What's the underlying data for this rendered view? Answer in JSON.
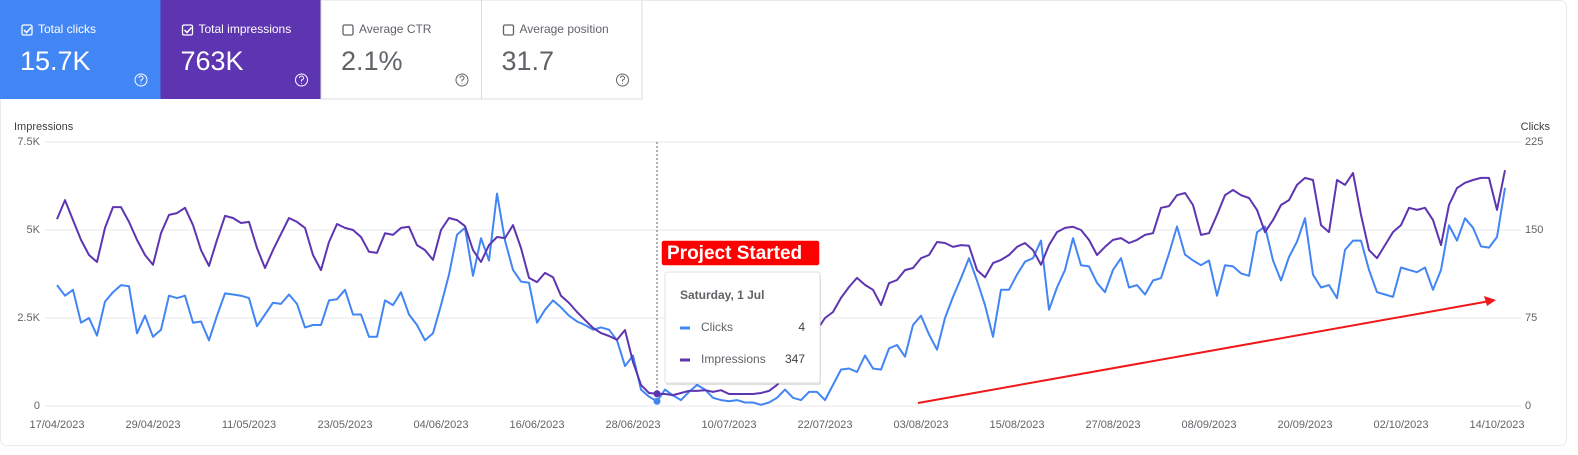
{
  "metrics": [
    {
      "label": "Total clicks",
      "value": "15.7K",
      "selected": true,
      "color": "#4285f4"
    },
    {
      "label": "Total impressions",
      "value": "763K",
      "selected": true,
      "color": "#5e35b1"
    },
    {
      "label": "Average CTR",
      "value": "2.1%",
      "selected": false,
      "color": "#ffffff"
    },
    {
      "label": "Average position",
      "value": "31.7",
      "selected": false,
      "color": "#ffffff"
    }
  ],
  "chart_data": {
    "type": "line",
    "y_label": "Impressions",
    "y2_label": "Clicks",
    "annotation": "Project Started",
    "tooltip": {
      "title": "Saturday, 1 Jul"
    },
    "categories": [
      "17/04/2023",
      null,
      null,
      null,
      null,
      null,
      null,
      null,
      null,
      null,
      null,
      null,
      "29/04/2023",
      null,
      null,
      null,
      null,
      null,
      null,
      null,
      null,
      null,
      null,
      null,
      "11/05/2023",
      null,
      null,
      null,
      null,
      null,
      null,
      null,
      null,
      null,
      null,
      null,
      "23/05/2023",
      null,
      null,
      null,
      null,
      null,
      null,
      null,
      null,
      null,
      null,
      null,
      "04/06/2023",
      null,
      null,
      null,
      null,
      null,
      null,
      null,
      null,
      null,
      null,
      null,
      "16/06/2023",
      null,
      null,
      null,
      null,
      null,
      null,
      null,
      null,
      null,
      null,
      null,
      "28/06/2023",
      null,
      null,
      null,
      null,
      null,
      null,
      null,
      null,
      null,
      null,
      null,
      "10/07/2023",
      null,
      null,
      null,
      null,
      null,
      null,
      null,
      null,
      null,
      null,
      null,
      "22/07/2023",
      null,
      null,
      null,
      null,
      null,
      null,
      null,
      null,
      null,
      null,
      null,
      "03/08/2023",
      null,
      null,
      null,
      null,
      null,
      null,
      null,
      null,
      null,
      null,
      null,
      "15/08/2023",
      null,
      null,
      null,
      null,
      null,
      null,
      null,
      null,
      null,
      null,
      null,
      "27/08/2023",
      null,
      null,
      null,
      null,
      null,
      null,
      null,
      null,
      null,
      null,
      null,
      "08/09/2023",
      null,
      null,
      null,
      null,
      null,
      null,
      null,
      null,
      null,
      null,
      null,
      "20/09/2023",
      null,
      null,
      null,
      null,
      null,
      null,
      null,
      null,
      null,
      null,
      null,
      "02/10/2023",
      null,
      null,
      null,
      null,
      null,
      null,
      null,
      null,
      null,
      null,
      null,
      "14/10/2023",
      null
    ],
    "series": [
      {
        "name": "Clicks",
        "color": "#4285f4",
        "axis": "y2",
        "values": [
          103,
          94,
          99,
          71,
          75,
          60,
          89,
          97,
          103,
          102,
          62,
          77,
          59,
          65,
          94,
          92,
          94,
          71,
          72,
          56,
          77,
          96,
          95,
          94,
          92,
          68,
          78,
          88,
          87,
          95,
          87,
          67,
          69,
          69,
          90,
          91,
          99,
          78,
          78,
          59,
          59,
          90,
          86,
          97,
          78,
          69,
          56,
          62,
          86,
          112,
          146,
          152,
          111,
          143,
          124,
          181,
          141,
          116,
          106,
          105,
          71,
          82,
          90,
          84,
          77,
          72,
          69,
          65,
          67,
          65,
          56,
          34,
          43,
          14,
          8,
          4,
          14,
          9,
          5,
          12,
          18,
          14,
          7,
          5,
          4,
          5,
          3,
          3,
          1,
          3,
          7,
          14,
          7,
          5,
          12,
          12,
          5,
          18,
          31,
          32,
          29,
          43,
          32,
          31,
          49,
          52,
          42,
          69,
          77,
          61,
          48,
          75,
          93,
          109,
          126,
          107,
          86,
          59,
          99,
          99,
          112,
          123,
          126,
          141,
          82,
          101,
          116,
          143,
          120,
          119,
          105,
          97,
          116,
          126,
          101,
          103,
          95,
          107,
          109,
          130,
          153,
          129,
          124,
          120,
          124,
          94,
          120,
          119,
          113,
          111,
          148,
          153,
          124,
          107,
          127,
          140,
          160,
          112,
          101,
          103,
          92,
          133,
          141,
          141,
          116,
          97,
          95,
          93,
          118,
          116,
          114,
          118,
          99,
          116,
          154,
          141,
          160,
          152,
          136,
          135,
          144,
          186
        ]
      },
      {
        "name": "Impressions",
        "color": "#5e35b1",
        "values": [
          5310,
          5850,
          5280,
          4720,
          4290,
          4090,
          5060,
          5650,
          5650,
          5230,
          4720,
          4290,
          4010,
          4910,
          5430,
          5480,
          5630,
          5140,
          4430,
          3980,
          4720,
          5400,
          5340,
          5200,
          5230,
          4490,
          3920,
          4430,
          4890,
          5340,
          5230,
          5060,
          4290,
          3860,
          4660,
          5170,
          5060,
          5000,
          4800,
          4380,
          4350,
          4910,
          4860,
          5060,
          5090,
          4570,
          4430,
          4150,
          5000,
          5340,
          5280,
          5110,
          4430,
          4090,
          4570,
          4800,
          4770,
          5140,
          4490,
          3640,
          3520,
          3780,
          3660,
          3130,
          2930,
          2670,
          2440,
          2220,
          2070,
          1990,
          1880,
          2160,
          1250,
          600,
          370,
          347,
          340,
          310,
          370,
          430,
          430,
          450,
          400,
          450,
          340,
          340,
          340,
          340,
          370,
          430,
          600,
          880,
          1250,
          1360,
          1650,
          2160,
          2500,
          2670,
          3070,
          3380,
          3640,
          3440,
          3300,
          2870,
          3490,
          3580,
          3860,
          3920,
          4200,
          4290,
          4660,
          4630,
          4520,
          4570,
          4550,
          3860,
          3660,
          4060,
          4150,
          4290,
          4520,
          4630,
          4430,
          4010,
          4570,
          4940,
          5060,
          5090,
          5000,
          4720,
          4290,
          4520,
          4720,
          4770,
          4630,
          4720,
          4860,
          4910,
          5630,
          5680,
          5990,
          6050,
          5710,
          4860,
          4910,
          5430,
          5990,
          6140,
          5990,
          5910,
          5570,
          4940,
          5280,
          5710,
          5850,
          6280,
          6480,
          6420,
          5140,
          4940,
          6420,
          6280,
          6620,
          5430,
          4430,
          4200,
          4570,
          4940,
          5140,
          5630,
          5570,
          5630,
          5280,
          4570,
          5710,
          6190,
          6340,
          6420,
          6480,
          6480,
          5570,
          6700
        ]
      }
    ],
    "ylim": [
      0,
      7500
    ],
    "yticks": [
      0,
      {
        "value": 2500,
        "label": "2.5K"
      },
      {
        "value": 5000,
        "label": "5K"
      },
      {
        "value": 7500,
        "label": "7.5K"
      }
    ],
    "y2lim": [
      0,
      225
    ],
    "y2ticks": [
      0,
      75,
      150,
      225
    ],
    "grid": true
  }
}
